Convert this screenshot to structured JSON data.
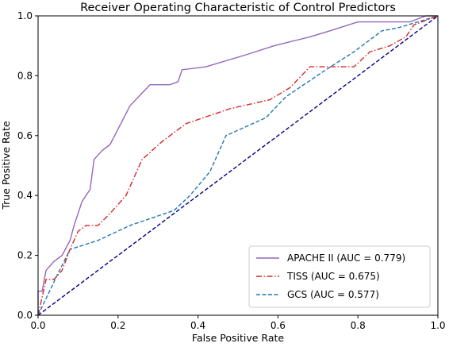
{
  "chart_data": {
    "type": "line",
    "title": "Receiver Operating Characteristic of Control Predictors",
    "xlabel": "False Positive Rate",
    "ylabel": "True Positive Rate",
    "xlim": [
      0.0,
      1.0
    ],
    "ylim": [
      0.0,
      1.0
    ],
    "xticks": [
      "0.0",
      "0.2",
      "0.4",
      "0.6",
      "0.8",
      "1.0"
    ],
    "yticks": [
      "0.0",
      "0.2",
      "0.4",
      "0.6",
      "0.8",
      "1.0"
    ],
    "grid": false,
    "legend_position": "lower-right",
    "series": [
      {
        "name": "APACHE II (AUC = 0.779)",
        "color": "#9467bd",
        "style": "solid",
        "x": [
          0.0,
          0.0,
          0.01,
          0.02,
          0.04,
          0.06,
          0.08,
          0.09,
          0.11,
          0.13,
          0.14,
          0.16,
          0.18,
          0.23,
          0.28,
          0.33,
          0.35,
          0.36,
          0.42,
          0.52,
          0.59,
          0.68,
          0.73,
          0.8,
          0.93,
          0.95,
          0.97,
          1.0
        ],
        "y": [
          0.0,
          0.08,
          0.08,
          0.15,
          0.18,
          0.2,
          0.25,
          0.3,
          0.38,
          0.42,
          0.52,
          0.55,
          0.57,
          0.7,
          0.77,
          0.77,
          0.78,
          0.82,
          0.83,
          0.87,
          0.9,
          0.93,
          0.95,
          0.98,
          0.98,
          0.99,
          1.0,
          1.0
        ]
      },
      {
        "name": "TISS (AUC = 0.675)",
        "color": "#d62728",
        "style": "dashdot",
        "x": [
          0.0,
          0.02,
          0.04,
          0.06,
          0.08,
          0.1,
          0.12,
          0.15,
          0.18,
          0.22,
          0.26,
          0.31,
          0.37,
          0.48,
          0.58,
          0.63,
          0.68,
          0.79,
          0.83,
          0.88,
          0.92,
          0.94,
          1.0
        ],
        "y": [
          0.0,
          0.12,
          0.12,
          0.15,
          0.22,
          0.28,
          0.3,
          0.3,
          0.34,
          0.4,
          0.52,
          0.58,
          0.64,
          0.69,
          0.72,
          0.76,
          0.83,
          0.83,
          0.88,
          0.9,
          0.93,
          0.97,
          1.0
        ]
      },
      {
        "name": "GCS (AUC = 0.577)",
        "color": "#1f77b4",
        "style": "dashed",
        "x": [
          0.0,
          0.05,
          0.08,
          0.15,
          0.23,
          0.34,
          0.38,
          0.43,
          0.47,
          0.57,
          0.62,
          0.72,
          0.79,
          0.86,
          0.9,
          1.0
        ],
        "y": [
          0.0,
          0.14,
          0.22,
          0.25,
          0.3,
          0.35,
          0.4,
          0.48,
          0.6,
          0.66,
          0.73,
          0.82,
          0.88,
          0.95,
          0.96,
          1.0
        ]
      },
      {
        "name": "",
        "color": "#000080",
        "style": "dashed",
        "x": [
          0.0,
          1.0
        ],
        "y": [
          0.0,
          1.0
        ]
      }
    ]
  }
}
